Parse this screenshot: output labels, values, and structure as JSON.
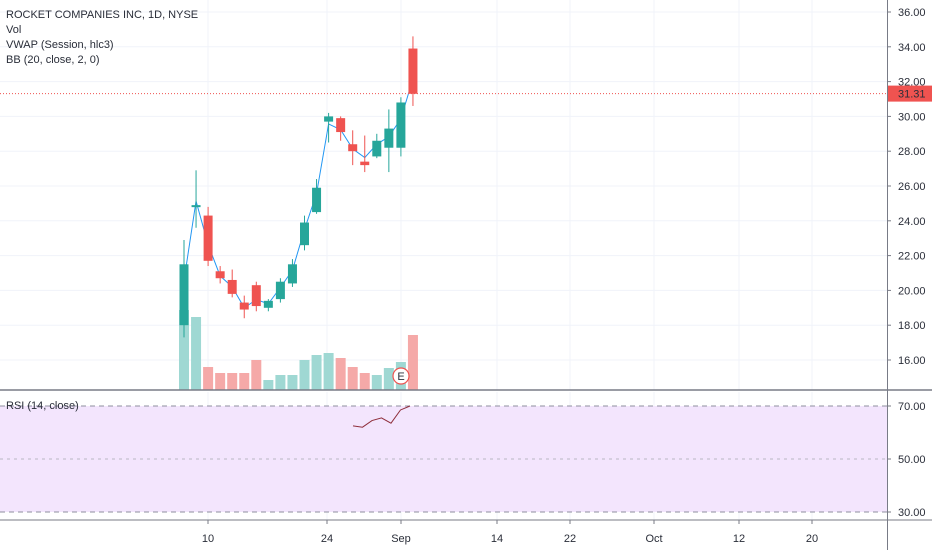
{
  "legend": {
    "symbol_line": "ROCKET COMPANIES INC, 1D, NYSE",
    "vol": "Vol",
    "vwap": "VWAP (Session, hlc3)",
    "bb": "BB (20, close, 2, 0)"
  },
  "rsi": {
    "label": "RSI (14, close)",
    "ticks": [
      "70.00",
      "50.00",
      "30.00"
    ],
    "values": [
      62.5,
      62,
      64.5,
      65.5,
      63.5,
      68.5,
      70
    ]
  },
  "earnings_marker": "E",
  "price_badge": "31.31",
  "colors": {
    "up": "#26a69a",
    "down": "#ef5350",
    "rsi_bg": "#f3e5fd",
    "rsi_line": "#8e2d3a"
  },
  "chart_data": {
    "type": "candlestick",
    "y_ticks": [
      "36.00",
      "34.00",
      "32.00",
      "30.00",
      "28.00",
      "26.00",
      "24.00",
      "22.00",
      "20.00",
      "18.00",
      "16.00"
    ],
    "x_ticks": [
      "10",
      "24",
      "Sep",
      "14",
      "22",
      "Oct",
      "12",
      "20"
    ],
    "ylim": [
      14.4,
      37
    ],
    "last_price": 31.31,
    "candles": [
      {
        "o": 18.0,
        "h": 22.9,
        "l": 17.3,
        "c": 21.5,
        "v": 0.8
      },
      {
        "o": 24.8,
        "h": 26.9,
        "l": 23.6,
        "c": 24.9,
        "v": 0.73
      },
      {
        "o": 24.3,
        "h": 24.8,
        "l": 21.4,
        "c": 21.7,
        "v": 0.23
      },
      {
        "o": 21.1,
        "h": 21.4,
        "l": 20.4,
        "c": 20.7,
        "v": 0.17
      },
      {
        "o": 20.6,
        "h": 21.2,
        "l": 19.6,
        "c": 19.8,
        "v": 0.17
      },
      {
        "o": 19.3,
        "h": 19.7,
        "l": 18.4,
        "c": 18.9,
        "v": 0.17
      },
      {
        "o": 20.3,
        "h": 20.5,
        "l": 18.8,
        "c": 19.1,
        "v": 0.3
      },
      {
        "o": 19.0,
        "h": 19.5,
        "l": 18.8,
        "c": 19.4,
        "v": 0.1
      },
      {
        "o": 19.5,
        "h": 20.7,
        "l": 19.3,
        "c": 20.5,
        "v": 0.15
      },
      {
        "o": 20.4,
        "h": 21.8,
        "l": 20.2,
        "c": 21.5,
        "v": 0.15
      },
      {
        "o": 22.6,
        "h": 24.3,
        "l": 22.3,
        "c": 23.9,
        "v": 0.3
      },
      {
        "o": 24.5,
        "h": 26.4,
        "l": 24.4,
        "c": 25.9,
        "v": 0.35
      },
      {
        "o": 29.7,
        "h": 30.2,
        "l": 28.5,
        "c": 30.0,
        "v": 0.37
      },
      {
        "o": 29.9,
        "h": 30.0,
        "l": 28.6,
        "c": 29.1,
        "v": 0.32
      },
      {
        "o": 28.4,
        "h": 29.2,
        "l": 27.2,
        "c": 28.0,
        "v": 0.23
      },
      {
        "o": 27.4,
        "h": 28.9,
        "l": 26.8,
        "c": 27.2,
        "v": 0.17
      },
      {
        "o": 27.7,
        "h": 29.0,
        "l": 27.6,
        "c": 28.6,
        "v": 0.15
      },
      {
        "o": 28.2,
        "h": 30.4,
        "l": 26.8,
        "c": 29.3,
        "v": 0.22
      },
      {
        "o": 28.2,
        "h": 31.1,
        "l": 27.7,
        "c": 30.8,
        "v": 0.28
      },
      {
        "o": 33.9,
        "h": 34.6,
        "l": 30.6,
        "c": 31.3,
        "v": 0.55
      }
    ]
  }
}
